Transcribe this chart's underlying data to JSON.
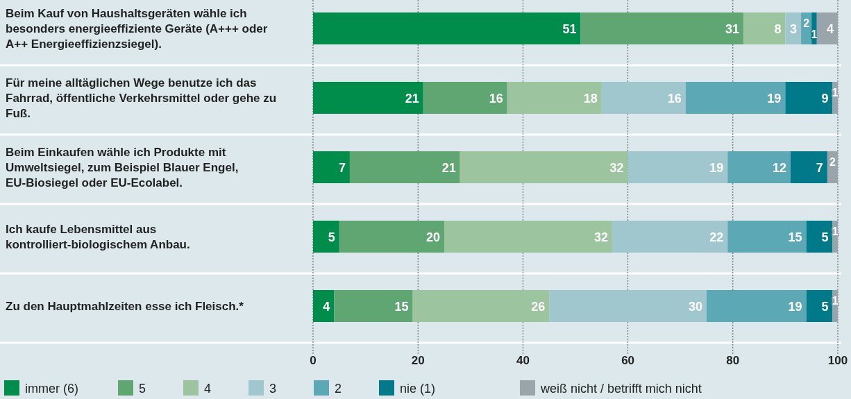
{
  "chart_data": {
    "type": "bar",
    "orientation": "horizontal",
    "stacked": true,
    "data_labels": true,
    "grid": "x",
    "legend": "bottom",
    "categories": [
      "Beim Kauf von Haushaltsgeräten wähle ich besonders energieeffiziente Geräte (A+++ oder A++ Energieeffizienzsiegel).",
      "Für meine alltäglichen Wege benutze ich das Fahrrad, öffentliche Verkehrsmittel oder gehe zu Fuß.",
      "Beim Einkaufen wähle ich Produkte mit Umweltsiegel, zum Beispiel Blauer Engel, EU-Biosiegel oder EU-Ecolabel.",
      "Ich kaufe Lebensmittel aus kontrolliert-biologischem Anbau.",
      "Zu den Hauptmahlzeiten esse ich Fleisch.*"
    ],
    "series": [
      {
        "name": "immer (6)",
        "color": "#008c4a",
        "values": [
          51,
          21,
          7,
          5,
          4
        ]
      },
      {
        "name": "5",
        "color": "#60a673",
        "values": [
          31,
          16,
          21,
          20,
          15
        ]
      },
      {
        "name": "4",
        "color": "#9cc49e",
        "values": [
          8,
          18,
          32,
          32,
          26
        ]
      },
      {
        "name": "3",
        "color": "#a0c7cd",
        "values": [
          3,
          16,
          19,
          22,
          30
        ]
      },
      {
        "name": "2",
        "color": "#5da8b5",
        "values": [
          2,
          19,
          12,
          15,
          19
        ]
      },
      {
        "name": "nie (1)",
        "color": "#007a89",
        "values": [
          1,
          9,
          7,
          5,
          5
        ]
      },
      {
        "name": "weiß nicht / betrifft mich nicht",
        "color": "#9aa4ab",
        "values": [
          4,
          1,
          2,
          1,
          1
        ]
      }
    ],
    "xlim": [
      0,
      100
    ],
    "xticks": [
      0,
      20,
      40,
      60,
      80,
      100
    ]
  }
}
